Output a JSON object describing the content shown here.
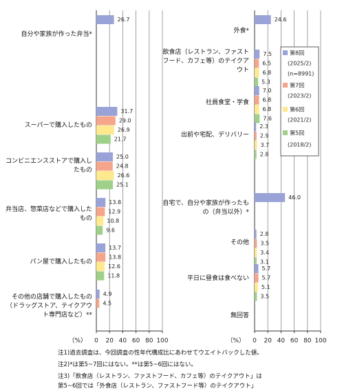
{
  "chart_data": [
    {
      "type": "bar",
      "orientation": "horizontal",
      "categories": [
        "自分や家族が作った弁当*",
        "スーパーで購入したもの",
        "コンビニエンスストアで購入したもの",
        "弁当店、惣菜店などで購入したもの",
        "パン屋で購入したもの",
        "その他の店舗で購入したもの（ドラッグストア、テイクアウト専門店など）**"
      ],
      "series": [
        {
          "color": "#9aa3d8",
          "values": [
            26.7,
            31.7,
            25.0,
            13.8,
            13.7,
            4.9
          ],
          "value_labels": [
            "26.7",
            "31.7",
            "25.0",
            "13.8",
            "13.7",
            "4.9"
          ]
        },
        {
          "color": "#f4a58a",
          "values": [
            null,
            29.0,
            24.8,
            12.9,
            13.8,
            4.5
          ],
          "value_labels": [
            null,
            "29.0",
            "24.8",
            "12.9",
            "13.8",
            "4.5"
          ]
        },
        {
          "color": "#ffe98f",
          "values": [
            null,
            26.9,
            26.6,
            10.8,
            12.6,
            null
          ],
          "value_labels": [
            null,
            "26.9",
            "26.6",
            "10.8",
            "12.6",
            null
          ]
        },
        {
          "color": "#9fd08a",
          "values": [
            null,
            21.7,
            25.1,
            9.6,
            11.8,
            null
          ],
          "value_labels": [
            null,
            "21.7",
            "25.1",
            "9.6",
            "11.8",
            null
          ]
        }
      ],
      "xlabel": "（%）",
      "xlim": [
        0,
        100
      ],
      "xticks": [
        0,
        20,
        40,
        60,
        80,
        100
      ],
      "grid": true
    },
    {
      "type": "bar",
      "orientation": "horizontal",
      "categories": [
        "外食*",
        "飲食店（レストラン、ファストフード、カフェ等）のテイクアウト",
        "社員食堂・学食",
        "出前や宅配、デリバリー",
        "自宅で、自分や家族が作ったもの（弁当以外）*",
        "その他",
        "平日に昼食は食べない",
        "無回答"
      ],
      "series": [
        {
          "name": "第8回",
          "period": "(2025/2)",
          "n": "(n=8991)",
          "color": "#9aa3d8",
          "values": [
            24.6,
            7.5,
            7.0,
            2.3,
            46.0,
            2.8,
            5.7,
            null
          ],
          "value_labels": [
            "24.6",
            "7.5",
            "7.0",
            "2.3",
            "46.0",
            "2.8",
            "5.7",
            null
          ]
        },
        {
          "name": "第7回",
          "period": "(2023/2)",
          "color": "#f4a58a",
          "values": [
            null,
            6.5,
            6.8,
            2.9,
            null,
            3.5,
            5.7,
            null
          ],
          "value_labels": [
            null,
            "6.5",
            "6.8",
            "2.9",
            null,
            "3.5",
            "5.7",
            null
          ]
        },
        {
          "name": "第6回",
          "period": "(2021/2)",
          "color": "#ffe98f",
          "values": [
            null,
            6.8,
            6.8,
            3.7,
            null,
            3.4,
            5.1,
            null
          ],
          "value_labels": [
            null,
            "6.8",
            "6.8",
            "3.7",
            null,
            "3.4",
            "5.1",
            null
          ]
        },
        {
          "name": "第5回",
          "period": "(2018/2)",
          "color": "#9fd08a",
          "values": [
            null,
            5.3,
            7.6,
            2.8,
            null,
            3.1,
            3.5,
            null
          ],
          "value_labels": [
            null,
            "5.3",
            "7.6",
            "2.8",
            null,
            "3.1",
            "3.5",
            null
          ]
        }
      ],
      "xlabel": "（%）",
      "xlim": [
        0,
        100
      ],
      "xticks": [
        0,
        20,
        40,
        60,
        80,
        100
      ],
      "grid": true,
      "legend": "inside-right"
    }
  ],
  "notes": [
    "注1)過去調査は、今回調査の性年代構成比にあわせてウエイトバックした値。",
    "注2)*は第5~7回にはない。**は第5~6回にはない。",
    "注3)「飲食店（レストラン、ファストフード、カフェ等）のテイクアウト」は",
    "第5~6回では「外食店（レストラン、ファストフード等）のテイクアウト」"
  ]
}
